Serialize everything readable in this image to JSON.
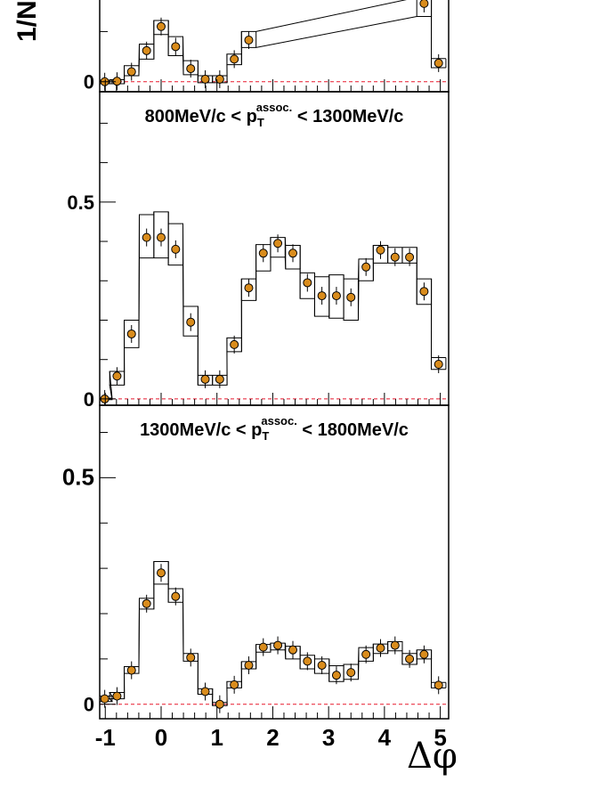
{
  "chart_data": {
    "type": "scatter",
    "ylabel_visible": "1/N",
    "xlabel": "Δφ",
    "xlim": [
      -1.1,
      5.15
    ],
    "x_ticks": [
      "-1",
      "0",
      "1",
      "2",
      "3",
      "4",
      "5"
    ],
    "x_tick_values": [
      -1,
      0,
      1,
      2,
      3,
      4,
      5
    ],
    "colors": {
      "marker_fill": "#d98c1c",
      "marker_stroke": "#000000",
      "baseline": "#e8182c",
      "frame": "#000000"
    },
    "panels": [
      {
        "label": {
          "pre": "",
          "post": ""
        },
        "ylim": [
          -0.02,
          0.17
        ],
        "y_ticks": [
          {
            "value": 0,
            "label": "0"
          }
        ],
        "x": [
          -1.01,
          -0.79,
          -0.53,
          -0.26,
          0.0,
          0.26,
          0.53,
          0.79,
          1.05,
          1.31,
          1.57,
          4.71,
          4.97
        ],
        "values": [
          0.0,
          0.001,
          0.02,
          0.062,
          0.11,
          0.07,
          0.026,
          0.005,
          0.005,
          0.045,
          0.083,
          0.156,
          0.037
        ],
        "sys_low": [
          -0.004,
          -0.004,
          0.012,
          0.045,
          0.094,
          0.052,
          0.014,
          -0.002,
          -0.002,
          0.034,
          0.068,
          0.13,
          0.028
        ],
        "sys_high": [
          0.003,
          0.004,
          0.032,
          0.075,
          0.122,
          0.09,
          0.042,
          0.012,
          0.012,
          0.055,
          0.1,
          0.168,
          0.046
        ]
      },
      {
        "label": {
          "pre": "800MeV/c < p",
          "sup": "assoc.",
          "sub": "T",
          "post": " < 1300MeV/c"
        },
        "ylim": [
          -0.016,
          0.78
        ],
        "y_ticks": [
          {
            "value": 0,
            "label": "0"
          },
          {
            "value": 0.5,
            "label": "0.5"
          }
        ],
        "x": [
          -1.01,
          -0.79,
          -0.53,
          -0.26,
          0.0,
          0.26,
          0.53,
          0.79,
          1.05,
          1.31,
          1.57,
          1.83,
          2.09,
          2.36,
          2.62,
          2.88,
          3.14,
          3.4,
          3.67,
          3.93,
          4.19,
          4.45,
          4.71,
          4.97
        ],
        "values": [
          0.0,
          0.058,
          0.165,
          0.41,
          0.41,
          0.38,
          0.195,
          0.05,
          0.05,
          0.138,
          0.282,
          0.37,
          0.395,
          0.37,
          0.295,
          0.262,
          0.262,
          0.258,
          0.335,
          0.378,
          0.36,
          0.36,
          0.273,
          0.088
        ],
        "sys_low": [
          -0.002,
          0.035,
          0.13,
          0.358,
          0.358,
          0.34,
          0.16,
          0.035,
          0.035,
          0.12,
          0.25,
          0.325,
          0.36,
          0.33,
          0.255,
          0.21,
          0.205,
          0.2,
          0.3,
          0.345,
          0.345,
          0.345,
          0.24,
          0.075
        ],
        "sys_high": [
          0.002,
          0.07,
          0.2,
          0.468,
          0.475,
          0.445,
          0.235,
          0.06,
          0.06,
          0.155,
          0.305,
          0.392,
          0.41,
          0.39,
          0.32,
          0.31,
          0.315,
          0.305,
          0.355,
          0.39,
          0.385,
          0.385,
          0.305,
          0.105
        ]
      },
      {
        "label": {
          "pre": "1300MeV/c < p",
          "sup": "assoc.",
          "sub": "T",
          "post": " < 1800MeV/c"
        },
        "ylim": [
          -0.032,
          0.66
        ],
        "y_ticks": [
          {
            "value": 0,
            "label": "0"
          },
          {
            "value": 0.5,
            "label": "0.5"
          }
        ],
        "x": [
          -1.01,
          -0.79,
          -0.53,
          -0.26,
          0.0,
          0.26,
          0.53,
          0.79,
          1.05,
          1.31,
          1.57,
          1.83,
          2.09,
          2.36,
          2.62,
          2.88,
          3.14,
          3.4,
          3.67,
          3.93,
          4.19,
          4.45,
          4.71,
          4.97
        ],
        "values": [
          0.012,
          0.018,
          0.075,
          0.222,
          0.29,
          0.238,
          0.103,
          0.028,
          0.0,
          0.043,
          0.086,
          0.126,
          0.13,
          0.12,
          0.095,
          0.086,
          0.064,
          0.07,
          0.11,
          0.124,
          0.13,
          0.1,
          0.11,
          0.042
        ],
        "sys_low": [
          0.006,
          0.012,
          0.068,
          0.21,
          0.265,
          0.225,
          0.095,
          0.022,
          -0.003,
          0.036,
          0.078,
          0.115,
          0.12,
          0.1,
          0.078,
          0.068,
          0.05,
          0.055,
          0.095,
          0.112,
          0.118,
          0.088,
          0.1,
          0.036
        ],
        "sys_high": [
          0.018,
          0.026,
          0.083,
          0.234,
          0.315,
          0.255,
          0.112,
          0.034,
          0.004,
          0.05,
          0.094,
          0.132,
          0.135,
          0.128,
          0.108,
          0.1,
          0.085,
          0.088,
          0.125,
          0.133,
          0.138,
          0.112,
          0.12,
          0.048
        ]
      }
    ]
  }
}
